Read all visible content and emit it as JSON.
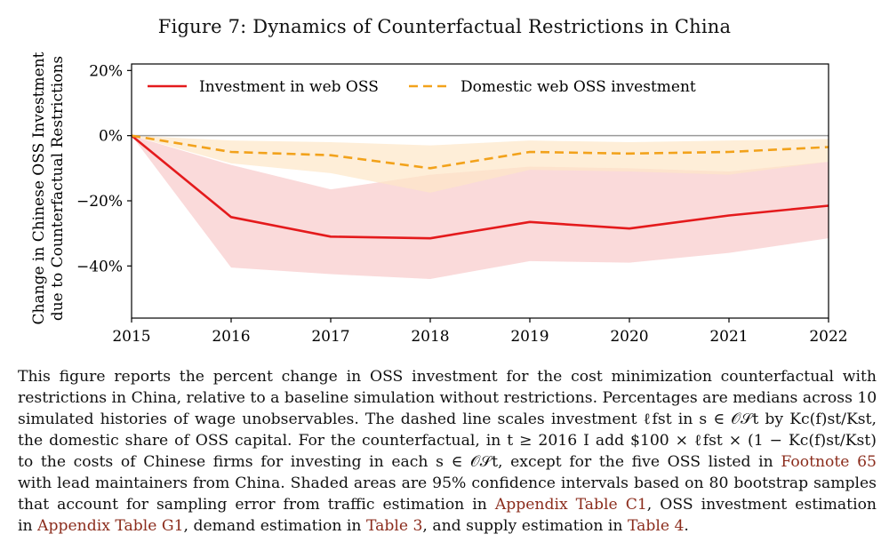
{
  "figure": {
    "title": "Figure 7: Dynamics of Counterfactual Restrictions in China"
  },
  "chart_data": {
    "type": "line",
    "x": [
      2015,
      2016,
      2017,
      2018,
      2019,
      2020,
      2021,
      2022
    ],
    "ylabel_line1": "Change in Chinese OSS Investment",
    "ylabel_line2": "due to Counterfactual Restrictions",
    "xlabel": "",
    "ylim": [
      -56,
      22
    ],
    "yticks": [
      20,
      0,
      -20,
      -40
    ],
    "ytick_labels": [
      "20%",
      "0%",
      "−20%",
      "−40%"
    ],
    "xtick_labels": [
      "2015",
      "2016",
      "2017",
      "2018",
      "2019",
      "2020",
      "2021",
      "2022"
    ],
    "legend_position": "top-left",
    "zero_line": true,
    "series": [
      {
        "name": "Investment in web OSS",
        "style": "solid",
        "color": "#e41a1c",
        "band_color": "#f9d3d3",
        "values": [
          0,
          -25,
          -31,
          -31.5,
          -26.5,
          -28.5,
          -24.5,
          -21.5
        ],
        "ci_low": [
          0,
          -40.5,
          -42.5,
          -44,
          -38.5,
          -39,
          -36,
          -31.5
        ],
        "ci_high": [
          0,
          -9,
          -16.5,
          -12,
          -9.5,
          -10,
          -11,
          -8
        ]
      },
      {
        "name": "Domestic web OSS investment",
        "style": "dashed",
        "color": "#f2a21b",
        "band_color": "#fde7c8",
        "values": [
          0,
          -5,
          -6,
          -10,
          -5,
          -5.5,
          -5,
          -3.5
        ],
        "ci_low": [
          0,
          -8.5,
          -11.5,
          -17.5,
          -10.5,
          -11,
          -12,
          -8
        ],
        "ci_high": [
          0,
          -1.5,
          -2,
          -3,
          -1.5,
          -2,
          -1.5,
          -1
        ]
      }
    ]
  },
  "caption": {
    "l1": "This figure reports the percent change in OSS investment for the cost minimization counterfactual with",
    "l2": "restrictions in China, relative to a baseline simulation without restrictions. Percentages are medians across 10",
    "l3": "simulated histories of wage unobservables. The dashed line scales investment ℓfst in s ∈ 𝒪𝒮t by Kc(f)st/Kst,",
    "l4": "the domestic share of OSS capital. For the counterfactual, in t ≥ 2016 I add $100 × ℓfst × (1 − Kc(f)st/Kst)",
    "l5a": "to the costs of Chinese firms for investing in each s ∈ 𝒪𝒮t, except for the five OSS listed in ",
    "l5ref": "Footnote 65",
    "l6": "with lead maintainers from China. Shaded areas are 95% confidence intervals based on 80 bootstrap samples",
    "l7a": "that account for sampling error from traffic estimation in ",
    "l7ref": "Appendix Table C1",
    "l7b": ", OSS investment estimation",
    "l8a": "in ",
    "l8ref1": "Appendix Table G1",
    "l8b": ", demand estimation in ",
    "l8ref2": "Table 3",
    "l8c": ", and supply estimation in ",
    "l8ref3": "Table 4",
    "l8d": "."
  }
}
